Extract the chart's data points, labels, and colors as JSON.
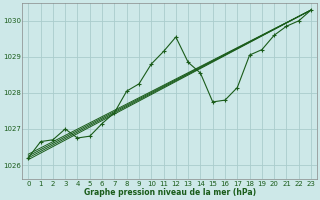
{
  "title": "Graphe pression niveau de la mer (hPa)",
  "background_color": "#cde8e8",
  "plot_bg_color": "#cde8e8",
  "grid_color": "#aacccc",
  "line_color": "#1a5c1a",
  "marker_color": "#1a5c1a",
  "xlim": [
    -0.5,
    23.5
  ],
  "ylim": [
    1025.6,
    1030.5
  ],
  "yticks": [
    1026,
    1027,
    1028,
    1029,
    1030
  ],
  "xticks": [
    0,
    1,
    2,
    3,
    4,
    5,
    6,
    7,
    8,
    9,
    10,
    11,
    12,
    13,
    14,
    15,
    16,
    17,
    18,
    19,
    20,
    21,
    22,
    23
  ],
  "xticklabels": [
    "0",
    "1",
    "2",
    "3",
    "4",
    "5",
    "6",
    "7",
    "8",
    "9",
    "10",
    "11",
    "12",
    "13",
    "14",
    "15",
    "16",
    "17",
    "18",
    "19",
    "20",
    "21",
    "22",
    "23"
  ],
  "straight_lines": [
    [
      [
        0,
        23
      ],
      [
        1026.2,
        1030.3
      ]
    ],
    [
      [
        0,
        23
      ],
      [
        1026.25,
        1030.3
      ]
    ],
    [
      [
        0,
        23
      ],
      [
        1026.3,
        1030.3
      ]
    ],
    [
      [
        0,
        23
      ],
      [
        1026.15,
        1030.3
      ]
    ]
  ],
  "zigzag_x": [
    0,
    1,
    2,
    3,
    4,
    5,
    6,
    7,
    8,
    9,
    10,
    11,
    12,
    13,
    14,
    15,
    16,
    17,
    18,
    19,
    20,
    21,
    22,
    23
  ],
  "zigzag_y": [
    1026.2,
    1026.65,
    1026.7,
    1027.0,
    1026.75,
    1026.8,
    1027.15,
    1027.45,
    1028.05,
    1028.25,
    1028.8,
    1029.15,
    1029.55,
    1028.85,
    1028.55,
    1027.75,
    1027.8,
    1028.15,
    1029.05,
    1029.2,
    1029.6,
    1029.85,
    1030.0,
    1030.3
  ]
}
